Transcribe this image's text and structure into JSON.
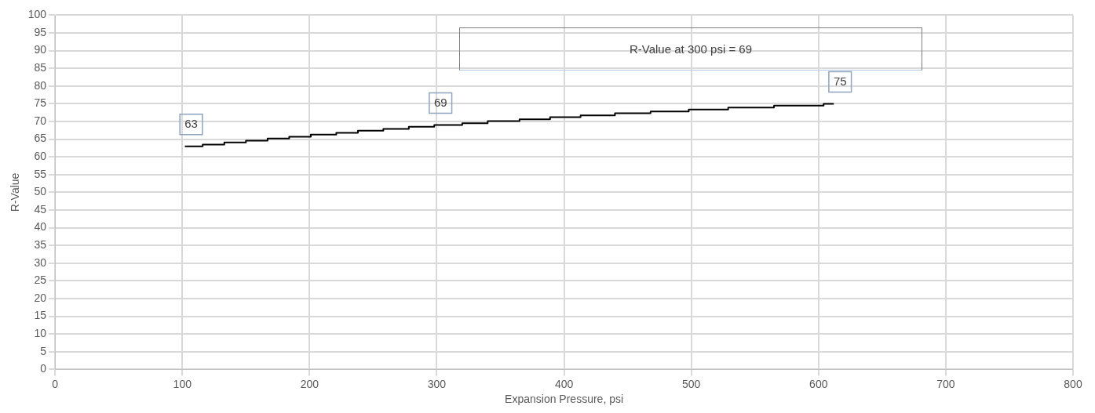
{
  "chart_data": {
    "type": "step",
    "xlabel": "Expansion Pressure, psi",
    "ylabel": "R-Value",
    "xlim": [
      0,
      800
    ],
    "xticks": [
      0,
      100,
      200,
      300,
      400,
      500,
      600,
      700,
      800
    ],
    "ylim": [
      0,
      100
    ],
    "yticks": [
      0,
      5,
      10,
      15,
      20,
      25,
      30,
      35,
      40,
      45,
      50,
      55,
      60,
      65,
      70,
      75,
      80,
      85,
      90,
      95,
      100
    ],
    "grid": true,
    "legend": false,
    "marker": "none",
    "annotations": [
      "R-Value at 300 psi = 69"
    ],
    "series": [
      {
        "color": "#000000",
        "x": [
          102,
          116,
          133,
          150,
          167,
          184,
          201,
          221,
          238,
          258,
          278,
          298,
          320,
          340,
          365,
          389,
          413,
          440,
          468,
          498,
          529,
          565,
          604,
          612
        ],
        "values": [
          63,
          63.5,
          64.1,
          64.6,
          65.2,
          65.7,
          66.3,
          66.8,
          67.4,
          67.9,
          68.5,
          69.0,
          69.5,
          70.1,
          70.6,
          71.2,
          71.7,
          72.3,
          72.8,
          73.4,
          73.9,
          74.5,
          75.0,
          75.0
        ],
        "value_labels": [
          "63",
          null,
          null,
          null,
          null,
          null,
          null,
          null,
          null,
          null,
          null,
          "69",
          null,
          null,
          null,
          null,
          null,
          null,
          null,
          null,
          null,
          null,
          null,
          "75"
        ]
      }
    ]
  }
}
